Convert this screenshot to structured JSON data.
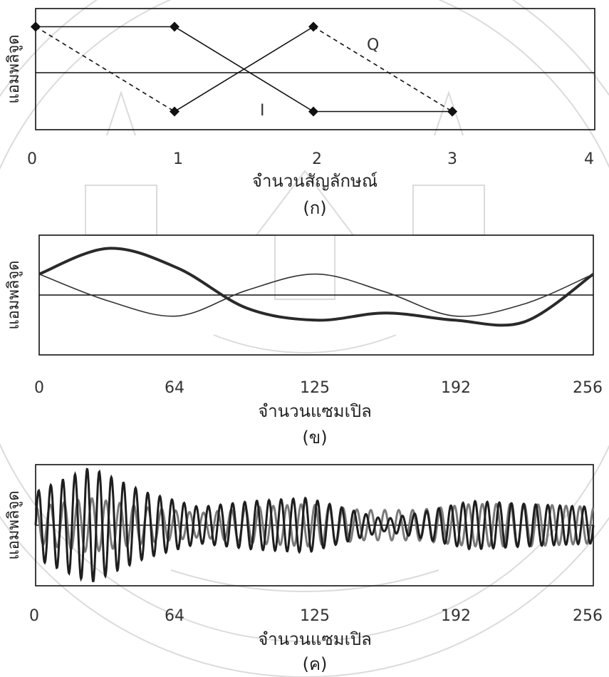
{
  "chart_data": [
    {
      "type": "line",
      "panel_caption": "(ก)",
      "ylabel": "แอมพลิจูด",
      "xlabel": "จำนวนสัญลักษณ์",
      "xlim": [
        0,
        4
      ],
      "ylim": [
        -1,
        1
      ],
      "x_ticks": [
        "0",
        "1",
        "2",
        "3",
        "4"
      ],
      "series": [
        {
          "name": "I",
          "style": "solid",
          "marker": "diamond",
          "x": [
            0,
            1,
            2,
            3
          ],
          "y": [
            0.7,
            0.7,
            -0.7,
            -0.7
          ]
        },
        {
          "name": "Q",
          "style": "dashed+solid",
          "marker": "diamond",
          "x": [
            0,
            1,
            2,
            3
          ],
          "y": [
            0.7,
            -0.7,
            0.7,
            -0.7
          ]
        }
      ],
      "annotations": [
        "Q",
        "I"
      ]
    },
    {
      "type": "line",
      "panel_caption": "(ข)",
      "ylabel": "แอมพลิจูด",
      "xlabel": "จำนวนแซมเปิล",
      "xlim": [
        0,
        256
      ],
      "ylim": [
        -1,
        1
      ],
      "x_ticks": [
        "0",
        "64",
        "125",
        "192",
        "256"
      ],
      "series": [
        {
          "style": "thick",
          "x": [
            0,
            32,
            64,
            96,
            128,
            160,
            192,
            224,
            256
          ],
          "y": [
            0.35,
            0.78,
            0.45,
            -0.22,
            -0.42,
            -0.3,
            -0.42,
            -0.45,
            0.35
          ]
        },
        {
          "style": "thin",
          "x": [
            0,
            32,
            64,
            96,
            128,
            160,
            192,
            224,
            256
          ],
          "y": [
            0.35,
            -0.1,
            -0.35,
            0.08,
            0.35,
            0.05,
            -0.35,
            -0.15,
            0.35
          ]
        }
      ]
    },
    {
      "type": "line",
      "panel_caption": "(ค)",
      "ylabel": "แอมพลิจูด",
      "xlabel": "จำนวนแซมเปิล",
      "xlim": [
        0,
        256
      ],
      "ylim": [
        -1,
        1
      ],
      "x_ticks": [
        "0",
        "64",
        "125",
        "192",
        "256"
      ],
      "series": [
        {
          "style": "dark",
          "cycles": 46,
          "envelope_x": [
            0,
            25,
            50,
            75,
            100,
            125,
            150,
            160,
            175,
            200,
            225,
            256
          ],
          "envelope_y": [
            0.55,
            0.95,
            0.55,
            0.3,
            0.4,
            0.45,
            0.2,
            0.1,
            0.2,
            0.4,
            0.35,
            0.3
          ]
        },
        {
          "style": "gray",
          "cycles": 40,
          "envelope_x": [
            0,
            25,
            50,
            75,
            100,
            125,
            150,
            175,
            200,
            225,
            256
          ],
          "envelope_y": [
            0.3,
            0.45,
            0.3,
            0.2,
            0.3,
            0.35,
            0.25,
            0.25,
            0.35,
            0.35,
            0.3
          ]
        }
      ]
    }
  ]
}
